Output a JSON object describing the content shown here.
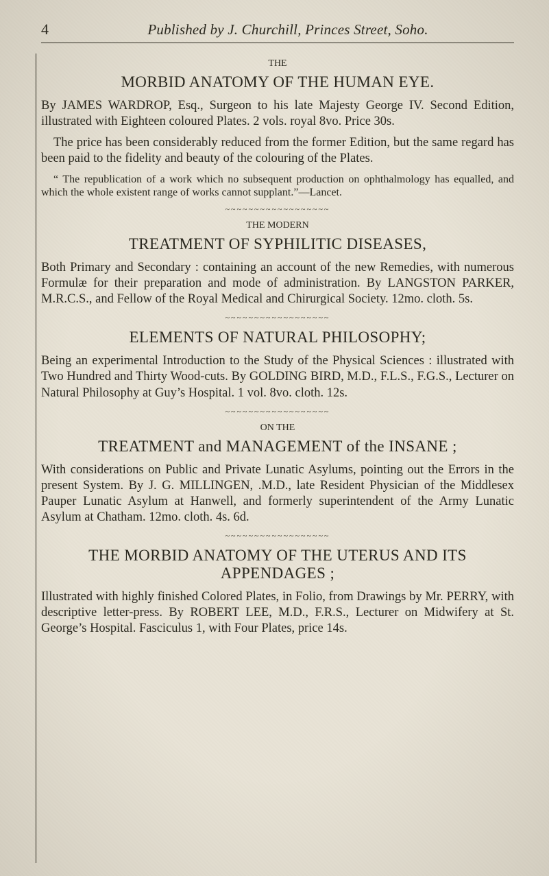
{
  "page": {
    "page_number": "4",
    "running_title": "Published by J. Churchill, Princes Street, Soho.",
    "colors": {
      "paper": "#e8e3d6",
      "ink": "#2a281f"
    },
    "typography": {
      "body_fontsize_pt": 14,
      "headline_fontsize_pt": 18,
      "running_title_style": "italic"
    },
    "separator_glyphs": "~~~~~~~~~~~~~~~~~~",
    "articles": [
      {
        "label": "THE",
        "headline": "MORBID ANATOMY OF THE HUMAN EYE.",
        "paragraphs": [
          "By JAMES WARDROP, Esq., Surgeon to his late Majesty George IV. Second Edition, illustrated with Eighteen coloured Plates. 2 vols. royal 8vo. Price 30s.",
          "The price has been considerably reduced from the former Edition, but the same regard has been paid to the fidelity and beauty of the colouring of the Plates."
        ],
        "quote": "“ The republication of a work which no subsequent production on ophthalmology has equalled, and which the whole existent range of works cannot supplant.”—Lancet."
      },
      {
        "label": "THE MODERN",
        "headline": "TREATMENT OF SYPHILITIC DISEASES,",
        "paragraphs": [
          "Both Primary and Secondary : containing an account of the new Remedies, with numerous Formulæ for their preparation and mode of administration. By LANGSTON PARKER, M.R.C.S., and Fellow of the Royal Medical and Chirurgical Society. 12mo. cloth. 5s."
        ]
      },
      {
        "headline": "ELEMENTS OF NATURAL PHILOSOPHY;",
        "paragraphs": [
          "Being an experimental Introduction to the Study of the Physical Sciences : illustrated with Two Hundred and Thirty Wood-cuts. By GOLDING BIRD, M.D., F.L.S., F.G.S., Lecturer on Natural Philosophy at Guy’s Hospital. 1 vol. 8vo. cloth. 12s."
        ]
      },
      {
        "label": "ON THE",
        "headline": "TREATMENT and MANAGEMENT of the INSANE ;",
        "paragraphs": [
          "With considerations on Public and Private Lunatic Asylums, pointing out the Errors in the present System. By J. G. MILLINGEN, .M.D., late Resident Physician of the Middlesex Pauper Lunatic Asylum at Hanwell, and formerly superintendent of the Army Lunatic Asylum at Chatham. 12mo. cloth. 4s. 6d."
        ]
      },
      {
        "headline": "THE MORBID ANATOMY OF THE UTERUS AND ITS APPENDAGES ;",
        "paragraphs": [
          "Illustrated with highly finished Colored Plates, in Folio, from Drawings by Mr. PERRY, with descriptive letter-press. By ROBERT LEE, M.D., F.R.S., Lecturer on Midwifery at St. George’s Hospital. Fasciculus 1, with Four Plates, price 14s."
        ]
      }
    ]
  }
}
